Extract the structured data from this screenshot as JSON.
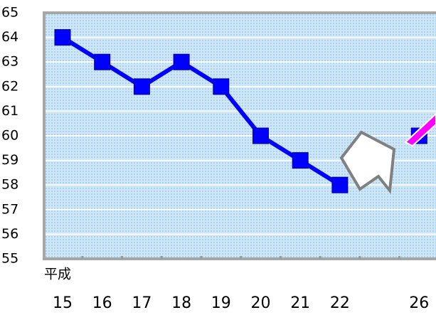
{
  "chart_data": {
    "type": "line",
    "x_prefix": "平成",
    "categories": [
      "15",
      "16",
      "17",
      "18",
      "19",
      "20",
      "21",
      "22",
      null,
      "26"
    ],
    "series": [
      {
        "color": "#0000ff",
        "values": [
          64,
          63,
          62,
          63,
          62,
          60,
          59,
          58,
          null,
          60
        ]
      }
    ],
    "ylim": [
      55,
      65
    ],
    "yticks": [
      55,
      56,
      57,
      58,
      59,
      60,
      61,
      62,
      63,
      64,
      65
    ],
    "grid": true
  }
}
